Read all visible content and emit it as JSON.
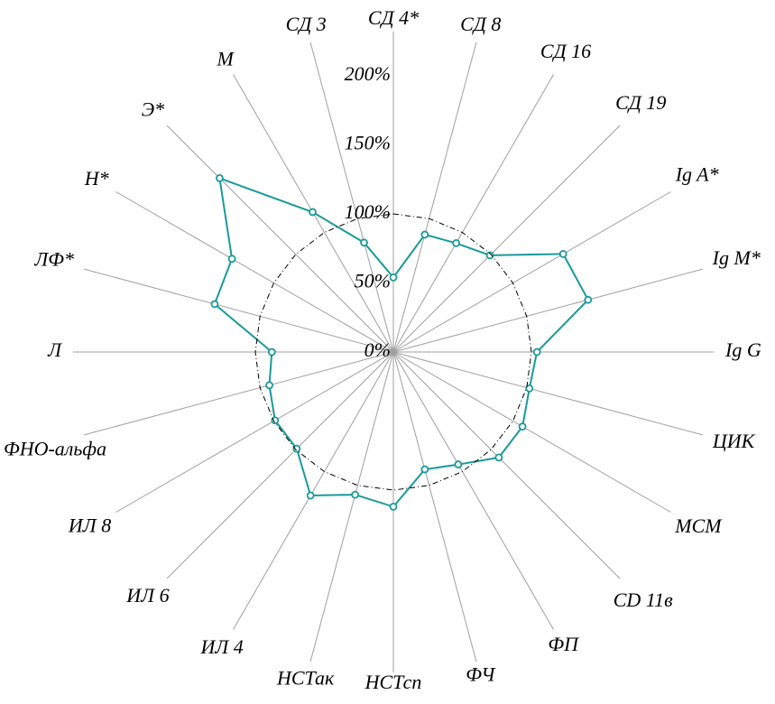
{
  "chart_data": {
    "type": "radar",
    "categories": [
      "СД 4*",
      "СД 8",
      "СД 16",
      "СД 19",
      "Ig A*",
      "Ig M*",
      "Ig G",
      "ЦИК",
      "МСМ",
      "CD 11в",
      "ФП",
      "ФЧ",
      "НСТсп",
      "НСТак",
      "ИЛ 4",
      "ИЛ 6",
      "ИЛ 8",
      "ФНО-альфа",
      "Л",
      "ЛФ*",
      "Н*",
      "Э*",
      "М",
      "СД 3"
    ],
    "series": [
      {
        "color": "#1a9a9a",
        "markers": true,
        "dashed": false,
        "values": [
          54,
          88,
          91,
          99,
          142,
          146,
          104,
          102,
          108,
          108,
          94,
          88,
          112,
          107,
          120,
          99,
          99,
          93,
          88,
          134,
          135,
          178,
          117,
          82
        ]
      },
      {
        "color": "#000000",
        "markers": false,
        "dashed": true,
        "values": [
          100,
          100,
          100,
          100,
          100,
          100,
          100,
          100,
          100,
          100,
          100,
          100,
          100,
          100,
          100,
          100,
          100,
          100,
          100,
          100,
          100,
          100,
          100,
          100
        ]
      }
    ],
    "ylim": [
      0,
      232
    ],
    "yticks": [
      {
        "value": 0,
        "label": "0%"
      },
      {
        "value": 50,
        "label": "50%"
      },
      {
        "value": 100,
        "label": "100%"
      },
      {
        "value": 150,
        "label": "150%"
      },
      {
        "value": 200,
        "label": "200%"
      }
    ],
    "spoke_color": "#a0a0a0"
  }
}
